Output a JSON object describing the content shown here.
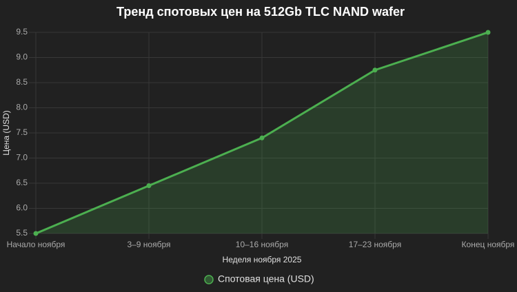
{
  "chart_data": {
    "type": "line",
    "title": "Тренд спотовых цен на 512Gb TLC NAND wafer",
    "x_label": "Неделя ноября 2025",
    "y_label": "Цена (USD)",
    "categories": [
      "Начало ноября",
      "3–9 ноября",
      "10–16 ноября",
      "17–23 ноября",
      "Конец ноября"
    ],
    "series": [
      {
        "name": "Спотовая цена (USD)",
        "color": "#4caf50",
        "values": [
          5.5,
          6.45,
          7.4,
          8.75,
          9.5
        ]
      }
    ],
    "ylim": [
      5.5,
      9.5
    ],
    "yticks": [
      5.5,
      {
        "value": 6,
        "label": "6.0"
      },
      6.5,
      {
        "value": 7,
        "label": "7.0"
      },
      7.5,
      {
        "value": 8,
        "label": "8.0"
      },
      8.5,
      {
        "value": 9,
        "label": "9.0"
      },
      9.5
    ],
    "grid": true,
    "fill": true,
    "legend": "bottom"
  }
}
